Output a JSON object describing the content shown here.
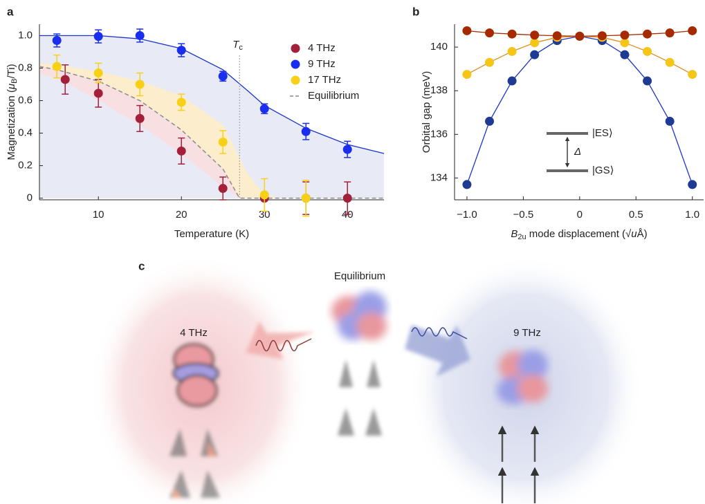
{
  "chart_data": [
    {
      "panel": "a",
      "type": "scatter",
      "xlabel": "Temperature (K)",
      "ylabel": [
        {
          "text": "Magnetization ("
        },
        {
          "text": "μ",
          "style": "italic"
        },
        {
          "text": "B",
          "style": "sub"
        },
        {
          "text": "/Ti)"
        }
      ],
      "xlim": [
        2.9,
        44.4
      ],
      "ylim": [
        -0.01,
        1.07
      ],
      "xticks": [
        10,
        20,
        30,
        40
      ],
      "yticks": [
        0,
        0.2,
        0.4,
        0.6,
        0.8,
        {
          "value": 1,
          "label": "1.0"
        }
      ],
      "series": [
        {
          "name": "4 THz",
          "color": "#a3203a",
          "x": [
            6,
            10,
            15,
            20,
            25,
            30,
            35,
            40
          ],
          "values": [
            0.73,
            0.645,
            0.49,
            0.29,
            0.06,
            0,
            0,
            0
          ],
          "errors": [
            0.09,
            0.085,
            0.08,
            0.08,
            0.07,
            0.01,
            0.1,
            0.1
          ]
        },
        {
          "name": "9 THz",
          "color": "#1a2ef0",
          "x": [
            5,
            10,
            15,
            20,
            25,
            30,
            35,
            40
          ],
          "values": [
            0.97,
            0.995,
            1.0,
            0.91,
            0.75,
            0.55,
            0.41,
            0.3
          ],
          "errors": [
            0.04,
            0.04,
            0.04,
            0.04,
            0.03,
            0.03,
            0.05,
            0.05
          ]
        },
        {
          "name": "17 THz",
          "color": "#f7d117",
          "x": [
            5,
            10,
            15,
            20,
            25,
            30,
            35
          ],
          "values": [
            0.81,
            0.77,
            0.7,
            0.59,
            0.345,
            0.02,
            0
          ],
          "errors": [
            0.07,
            0.06,
            0.07,
            0.05,
            0.07,
            0.1,
            0.11
          ]
        }
      ],
      "curves": [
        {
          "color": "#1a35c8",
          "fill": "#e8ebf6",
          "x": [
            2.9,
            10,
            15,
            20,
            25,
            28,
            30,
            35,
            40,
            44.4
          ],
          "values": [
            1.0,
            1.0,
            0.98,
            0.92,
            0.79,
            0.66,
            0.57,
            0.43,
            0.33,
            0.275
          ]
        },
        {
          "fill": "#fcedcc",
          "x": [
            2.9,
            5,
            10,
            15,
            20,
            25,
            28,
            30,
            32
          ],
          "values": [
            0.83,
            0.82,
            0.78,
            0.72,
            0.63,
            0.45,
            0.15,
            0.02,
            0
          ]
        },
        {
          "name": "Equilibrium",
          "color": "#8a8a8a",
          "dash": true,
          "fill": "#f7dfe2",
          "x": [
            2.9,
            5,
            10,
            15,
            20,
            25,
            27,
            30,
            44.4
          ],
          "values": [
            0.81,
            0.79,
            0.72,
            0.6,
            0.42,
            0.18,
            0.0,
            0,
            0
          ]
        },
        {
          "fill": "#e8ebf6",
          "x": [
            2.9,
            5,
            10,
            15,
            20,
            25,
            27
          ],
          "values": [
            0.76,
            0.74,
            0.6,
            0.45,
            0.27,
            0.07,
            0
          ]
        }
      ],
      "annotation": {
        "parts": [
          {
            "text": "T",
            "style": "italic"
          },
          {
            "text": "c",
            "style": "sub"
          }
        ],
        "x": 27
      }
    },
    {
      "panel": "b",
      "type": "line",
      "xlabel": [
        {
          "text": "B",
          "style": "italic"
        },
        {
          "text": "2u",
          "style": "sub"
        },
        {
          "text": " mode displacement (√"
        },
        {
          "text": "u",
          "style": "italic"
        },
        {
          "text": "Å)"
        }
      ],
      "ylabel": [
        {
          "text": "Orbital gap (meV)"
        }
      ],
      "xlim": [
        -1.11,
        1.1
      ],
      "ylim": [
        133.0,
        141.05
      ],
      "xticks": [
        {
          "value": -1,
          "label": "−1.0"
        },
        {
          "value": -0.5,
          "label": "−0.5"
        },
        0,
        0.5,
        {
          "value": 1,
          "label": "1.0"
        }
      ],
      "yticks": [
        134,
        136,
        138,
        140
      ],
      "x": [
        -1,
        -0.8,
        -0.6,
        -0.4,
        -0.2,
        0,
        0.2,
        0.4,
        0.6,
        0.8,
        1
      ],
      "series": [
        {
          "color": "#1f3a93",
          "line_color": "#1a35c8",
          "values": [
            133.7,
            136.6,
            138.45,
            139.65,
            140.3,
            140.5,
            140.3,
            139.65,
            138.45,
            136.6,
            133.7
          ]
        },
        {
          "color": "#f5c518",
          "line_color": "#e08a1a",
          "values": [
            138.75,
            139.3,
            139.8,
            140.2,
            140.45,
            140.5,
            140.45,
            140.2,
            139.8,
            139.3,
            138.75
          ]
        },
        {
          "color": "#a52a00",
          "line_color": "#a52a00",
          "values": [
            140.75,
            140.65,
            140.6,
            140.55,
            140.52,
            140.5,
            140.52,
            140.55,
            140.6,
            140.65,
            140.75
          ]
        }
      ],
      "inset": {
        "upper": "|ES⟩",
        "lower": "|GS⟩",
        "gap": "Δ"
      }
    }
  ],
  "illustration": {
    "panel": "c",
    "labels": [
      "Equilibrium",
      "4 THz",
      "9 THz"
    ]
  }
}
